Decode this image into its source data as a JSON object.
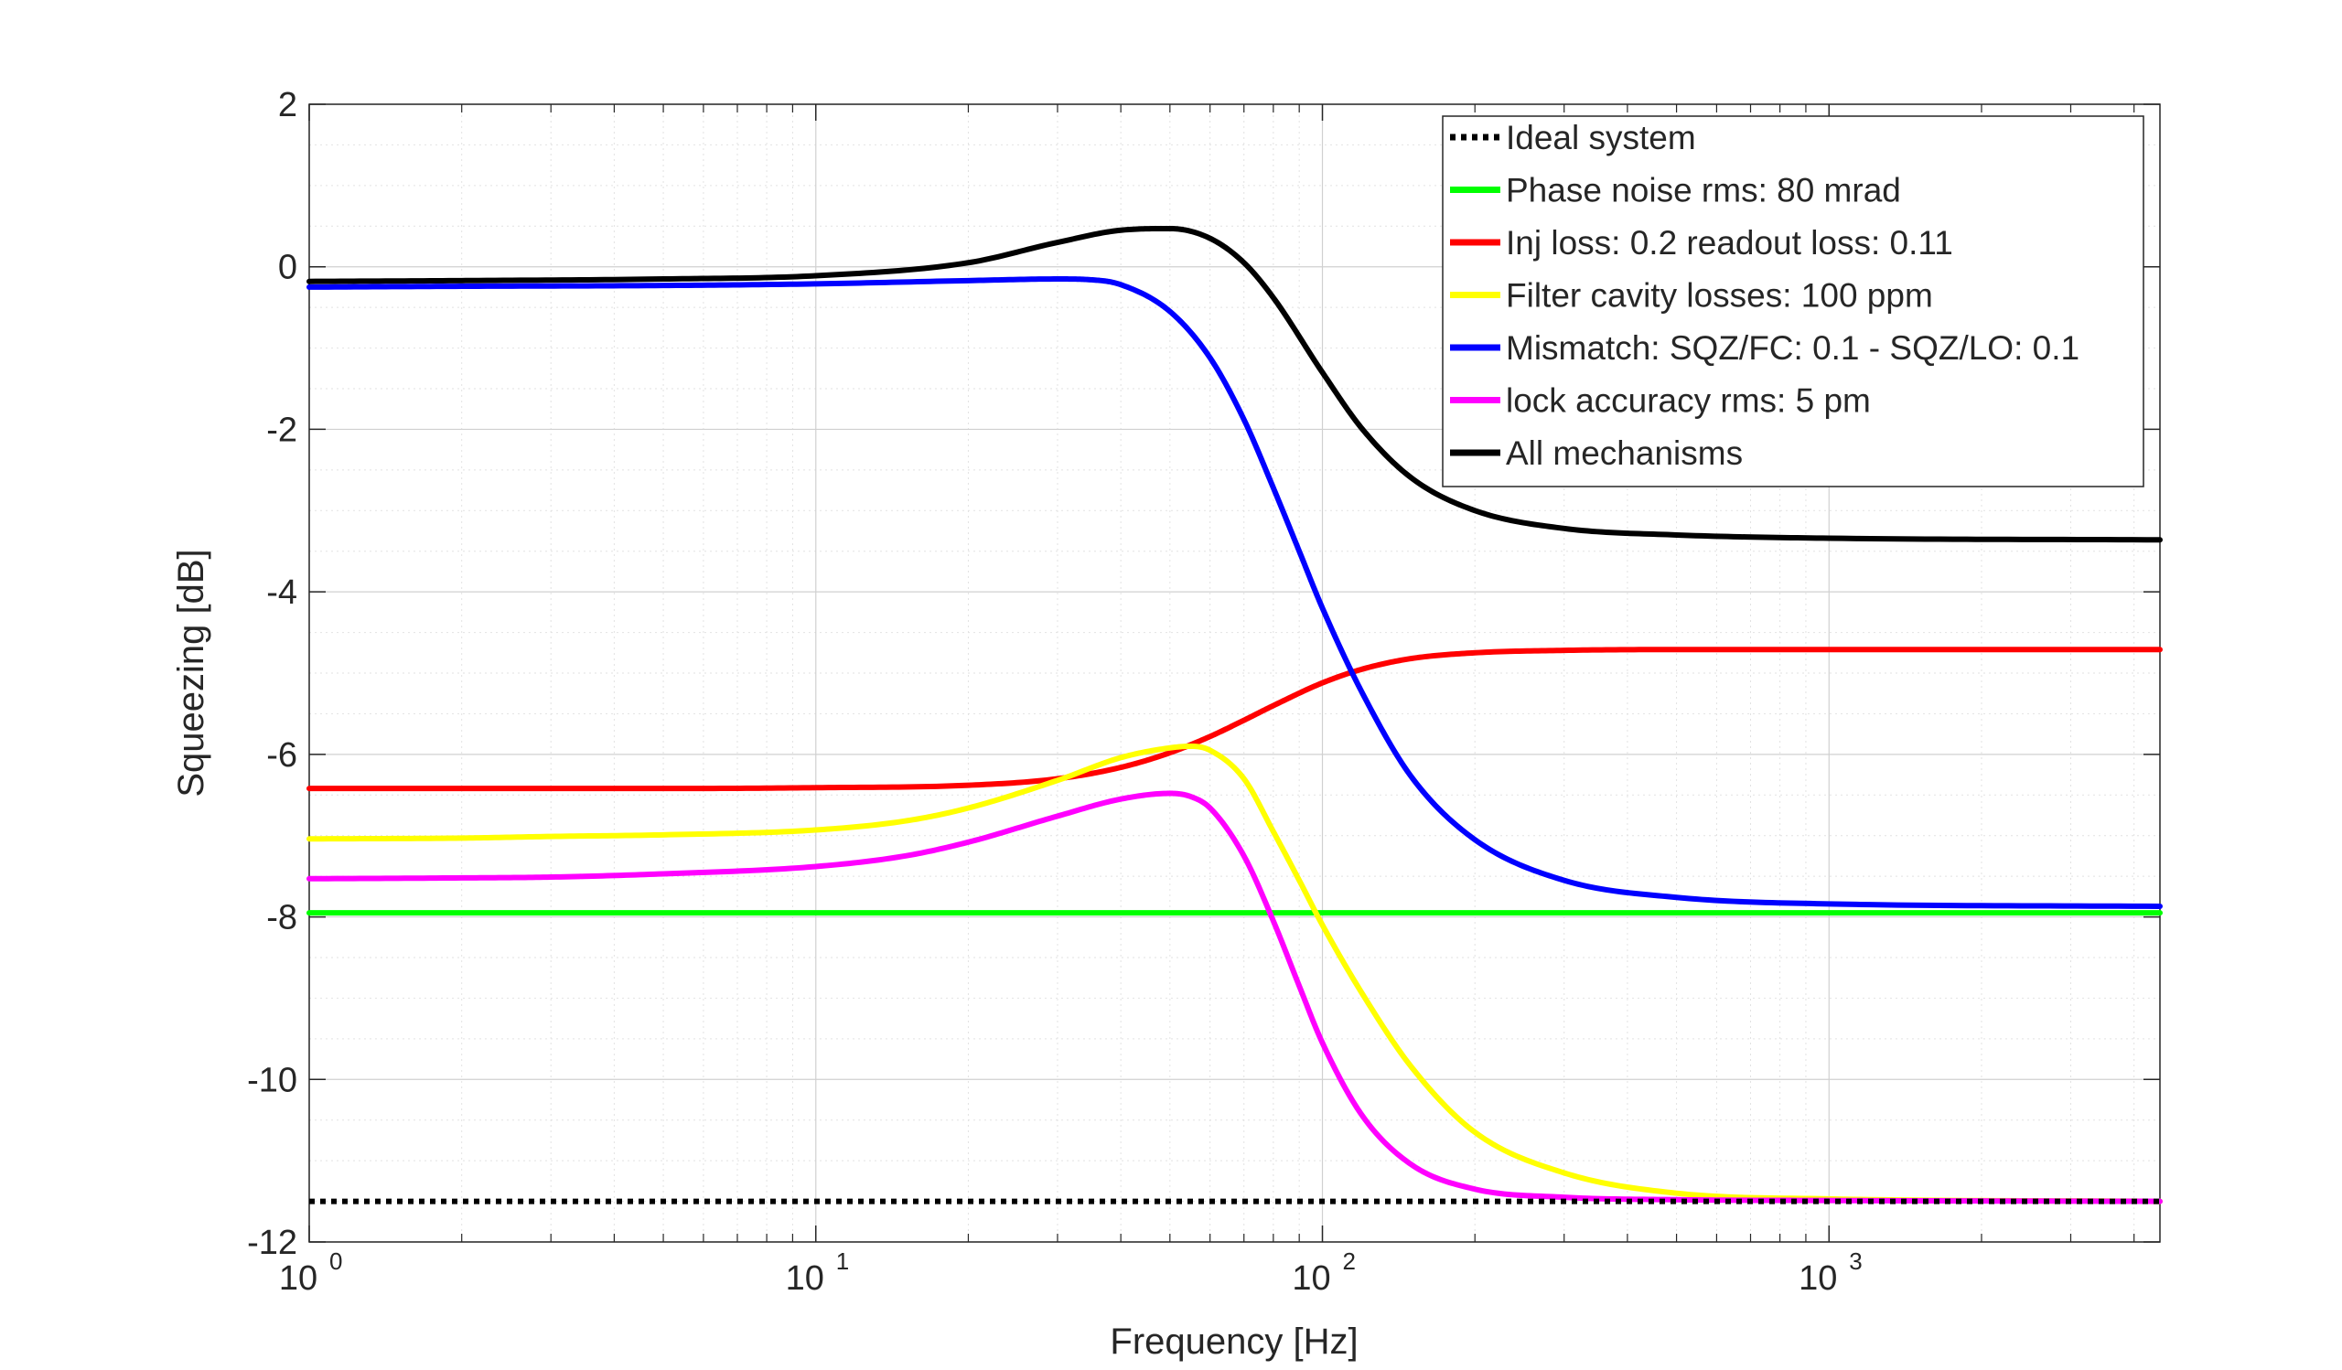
{
  "chart_data": {
    "type": "line",
    "title": "",
    "xlabel": "Frequency [Hz]",
    "ylabel": "Squeezing [dB]",
    "xscale": "log",
    "xlim": [
      1,
      4500
    ],
    "ylim": [
      -12,
      2
    ],
    "x_ticks": [
      {
        "value": 1,
        "base": "10",
        "exp": "0"
      },
      {
        "value": 10,
        "base": "10",
        "exp": "1"
      },
      {
        "value": 100,
        "base": "10",
        "exp": "2"
      },
      {
        "value": 1000,
        "base": "10",
        "exp": "3"
      }
    ],
    "y_ticks": [
      {
        "value": 2,
        "label": "2"
      },
      {
        "value": 0,
        "label": "0"
      },
      {
        "value": -2,
        "label": "-2"
      },
      {
        "value": -4,
        "label": "-4"
      },
      {
        "value": -6,
        "label": "-6"
      },
      {
        "value": -8,
        "label": "-8"
      },
      {
        "value": -10,
        "label": "-10"
      },
      {
        "value": -12,
        "label": "-12"
      }
    ],
    "grid": true,
    "minor_grid": true,
    "legend_position": "top-right",
    "series": [
      {
        "name": "Ideal system",
        "color": "#000000",
        "style": "dotted",
        "x": [
          1,
          4500
        ],
        "y": [
          -11.5,
          -11.5
        ]
      },
      {
        "name": "Phase noise rms: 80 mrad",
        "color": "#00ff00",
        "style": "solid",
        "x": [
          1,
          4500
        ],
        "y": [
          -7.95,
          -7.95
        ]
      },
      {
        "name": "Inj loss: 0.2 readout loss: 0.11",
        "color": "#ff0000",
        "style": "solid",
        "x": [
          1,
          2,
          5,
          10,
          20,
          30,
          40,
          50,
          60,
          70,
          80,
          100,
          120,
          150,
          200,
          300,
          500,
          1000,
          4500
        ],
        "y": [
          -6.42,
          -6.42,
          -6.42,
          -6.41,
          -6.38,
          -6.3,
          -6.16,
          -5.98,
          -5.78,
          -5.58,
          -5.4,
          -5.12,
          -4.95,
          -4.82,
          -4.75,
          -4.72,
          -4.71,
          -4.71,
          -4.71
        ]
      },
      {
        "name": "Filter cavity losses: 100 ppm",
        "color": "#ffff00",
        "style": "solid",
        "x": [
          1,
          2,
          3,
          5,
          10,
          15,
          20,
          30,
          40,
          50,
          55,
          60,
          70,
          80,
          90,
          100,
          120,
          150,
          200,
          300,
          500,
          1000,
          4500
        ],
        "y": [
          -7.04,
          -7.03,
          -7.01,
          -6.99,
          -6.93,
          -6.82,
          -6.66,
          -6.32,
          -6.04,
          -5.92,
          -5.9,
          -5.95,
          -6.3,
          -6.95,
          -7.55,
          -8.1,
          -8.95,
          -9.85,
          -10.65,
          -11.15,
          -11.4,
          -11.47,
          -11.5
        ]
      },
      {
        "name": "Mismatch: SQZ/FC: 0.1 - SQZ/LO: 0.1",
        "color": "#0000ff",
        "style": "solid",
        "x": [
          1,
          2,
          5,
          10,
          20,
          30,
          35,
          40,
          50,
          60,
          70,
          80,
          90,
          100,
          120,
          150,
          200,
          300,
          500,
          1000,
          4500
        ],
        "y": [
          -0.25,
          -0.24,
          -0.23,
          -0.21,
          -0.17,
          -0.15,
          -0.16,
          -0.22,
          -0.55,
          -1.12,
          -1.88,
          -2.72,
          -3.5,
          -4.2,
          -5.25,
          -6.28,
          -7.05,
          -7.55,
          -7.76,
          -7.84,
          -7.87
        ]
      },
      {
        "name": "lock accuracy rms: 5 pm",
        "color": "#ff00ff",
        "style": "solid",
        "x": [
          1,
          2,
          3,
          5,
          10,
          15,
          20,
          30,
          40,
          50,
          55,
          60,
          70,
          80,
          90,
          100,
          120,
          150,
          200,
          300,
          500,
          1000,
          4500
        ],
        "y": [
          -7.53,
          -7.52,
          -7.51,
          -7.47,
          -7.38,
          -7.25,
          -7.08,
          -6.76,
          -6.55,
          -6.48,
          -6.52,
          -6.66,
          -7.25,
          -8.05,
          -8.85,
          -9.55,
          -10.45,
          -11.05,
          -11.35,
          -11.45,
          -11.48,
          -11.49,
          -11.5
        ]
      },
      {
        "name": "All mechanisms",
        "color": "#000000",
        "style": "solid",
        "x": [
          1,
          2,
          5,
          10,
          20,
          30,
          40,
          50,
          60,
          70,
          80,
          100,
          120,
          150,
          200,
          300,
          500,
          1000,
          4500
        ],
        "y": [
          -0.18,
          -0.17,
          -0.15,
          -0.11,
          0.05,
          0.3,
          0.45,
          0.47,
          0.35,
          0.05,
          -0.38,
          -1.3,
          -2.0,
          -2.6,
          -3.0,
          -3.22,
          -3.3,
          -3.34,
          -3.36
        ]
      }
    ]
  }
}
